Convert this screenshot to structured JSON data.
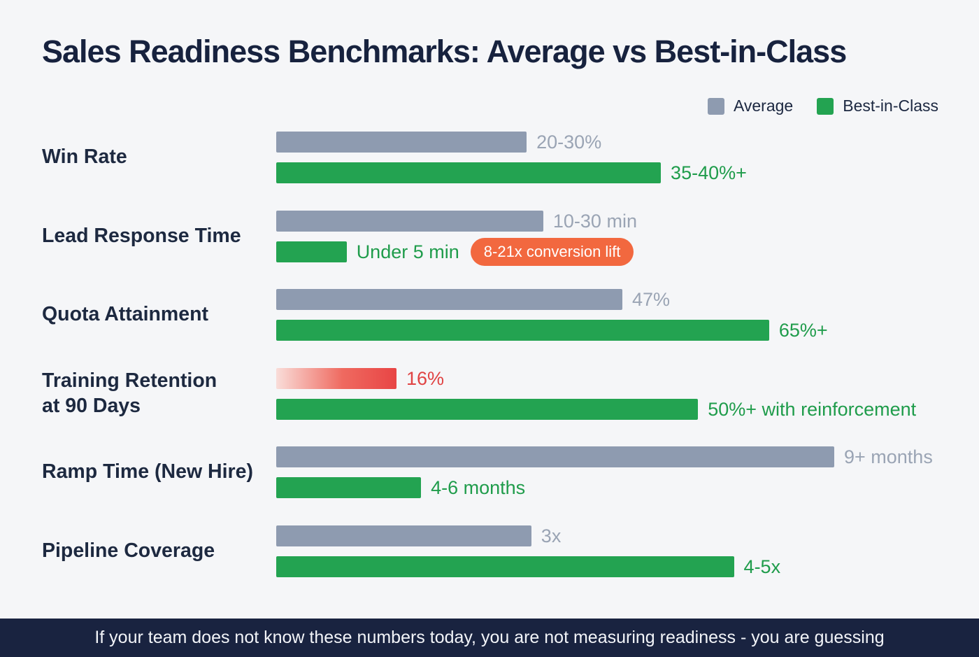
{
  "title": "Sales Readiness Benchmarks: Average vs Best-in-Class",
  "legend": {
    "average_label": "Average",
    "best_label": "Best-in-Class"
  },
  "colors": {
    "background": "#f5f6f8",
    "title_text": "#17223e",
    "category_text": "#1d2940",
    "average_bar": "#8e9bb0",
    "best_bar": "#23a351",
    "average_value_text": "#9aa4b4",
    "best_value_text": "#1f9c4b",
    "risk_bar_gradient_start": "#f9ddd9",
    "risk_bar_gradient_end": "#e84545",
    "risk_value_text": "#e04343",
    "badge_background": "#f2683f",
    "badge_text": "#ffffff",
    "footer_background": "#192340",
    "footer_text": "#f2f4f8"
  },
  "rows": [
    {
      "category": "Win Rate",
      "avg": {
        "label": "20-30%",
        "pct": 37.7
      },
      "best": {
        "label": "35-40%+",
        "pct": 57.9
      }
    },
    {
      "category": "Lead Response Time",
      "avg": {
        "label": "10-30 min",
        "pct": 40.2
      },
      "best": {
        "label": "Under 5 min",
        "pct": 10.6,
        "badge": "8-21x conversion lift"
      }
    },
    {
      "category": "Quota Attainment",
      "avg": {
        "label": "47%",
        "pct": 52.1
      },
      "best": {
        "label": "65%+",
        "pct": 74.2
      }
    },
    {
      "category": "Training Retention\nat 90 Days",
      "avg": {
        "label": "16%",
        "pct": 18.1,
        "style": "risk"
      },
      "best": {
        "label": "50%+ with reinforcement",
        "pct": 63.5
      }
    },
    {
      "category": "Ramp Time (New Hire)",
      "avg": {
        "label": "9+ months",
        "pct": 84.0
      },
      "best": {
        "label": "4-6 months",
        "pct": 21.8
      }
    },
    {
      "category": "Pipeline Coverage",
      "avg": {
        "label": "3x",
        "pct": 38.4
      },
      "best": {
        "label": "4-5x",
        "pct": 68.9
      }
    }
  ],
  "footer": "If your team does not know these numbers today, you are not measuring readiness - you are guessing",
  "chart_data": {
    "type": "bar",
    "orientation": "horizontal",
    "title": "Sales Readiness Benchmarks: Average vs Best-in-Class",
    "categories": [
      "Win Rate",
      "Lead Response Time",
      "Quota Attainment",
      "Training Retention at 90 Days",
      "Ramp Time (New Hire)",
      "Pipeline Coverage"
    ],
    "series": [
      {
        "name": "Average",
        "values": [
          "20-30%",
          "10-30 min",
          "47%",
          "16%",
          "9+ months",
          "3x"
        ],
        "bar_length_pct_of_track": [
          37.7,
          40.2,
          52.1,
          18.1,
          84.0,
          38.4
        ]
      },
      {
        "name": "Best-in-Class",
        "values": [
          "35-40%+",
          "Under 5 min",
          "65%+",
          "50%+ with reinforcement",
          "4-6 months",
          "4-5x"
        ],
        "bar_length_pct_of_track": [
          57.9,
          10.6,
          74.2,
          63.5,
          21.8,
          68.9
        ]
      }
    ],
    "annotations": [
      "8-21x conversion lift"
    ],
    "highlight": "Training Retention at 90 Days average bar shown in red gradient as a risk indicator",
    "legend_position": "top-right",
    "grid": false
  }
}
